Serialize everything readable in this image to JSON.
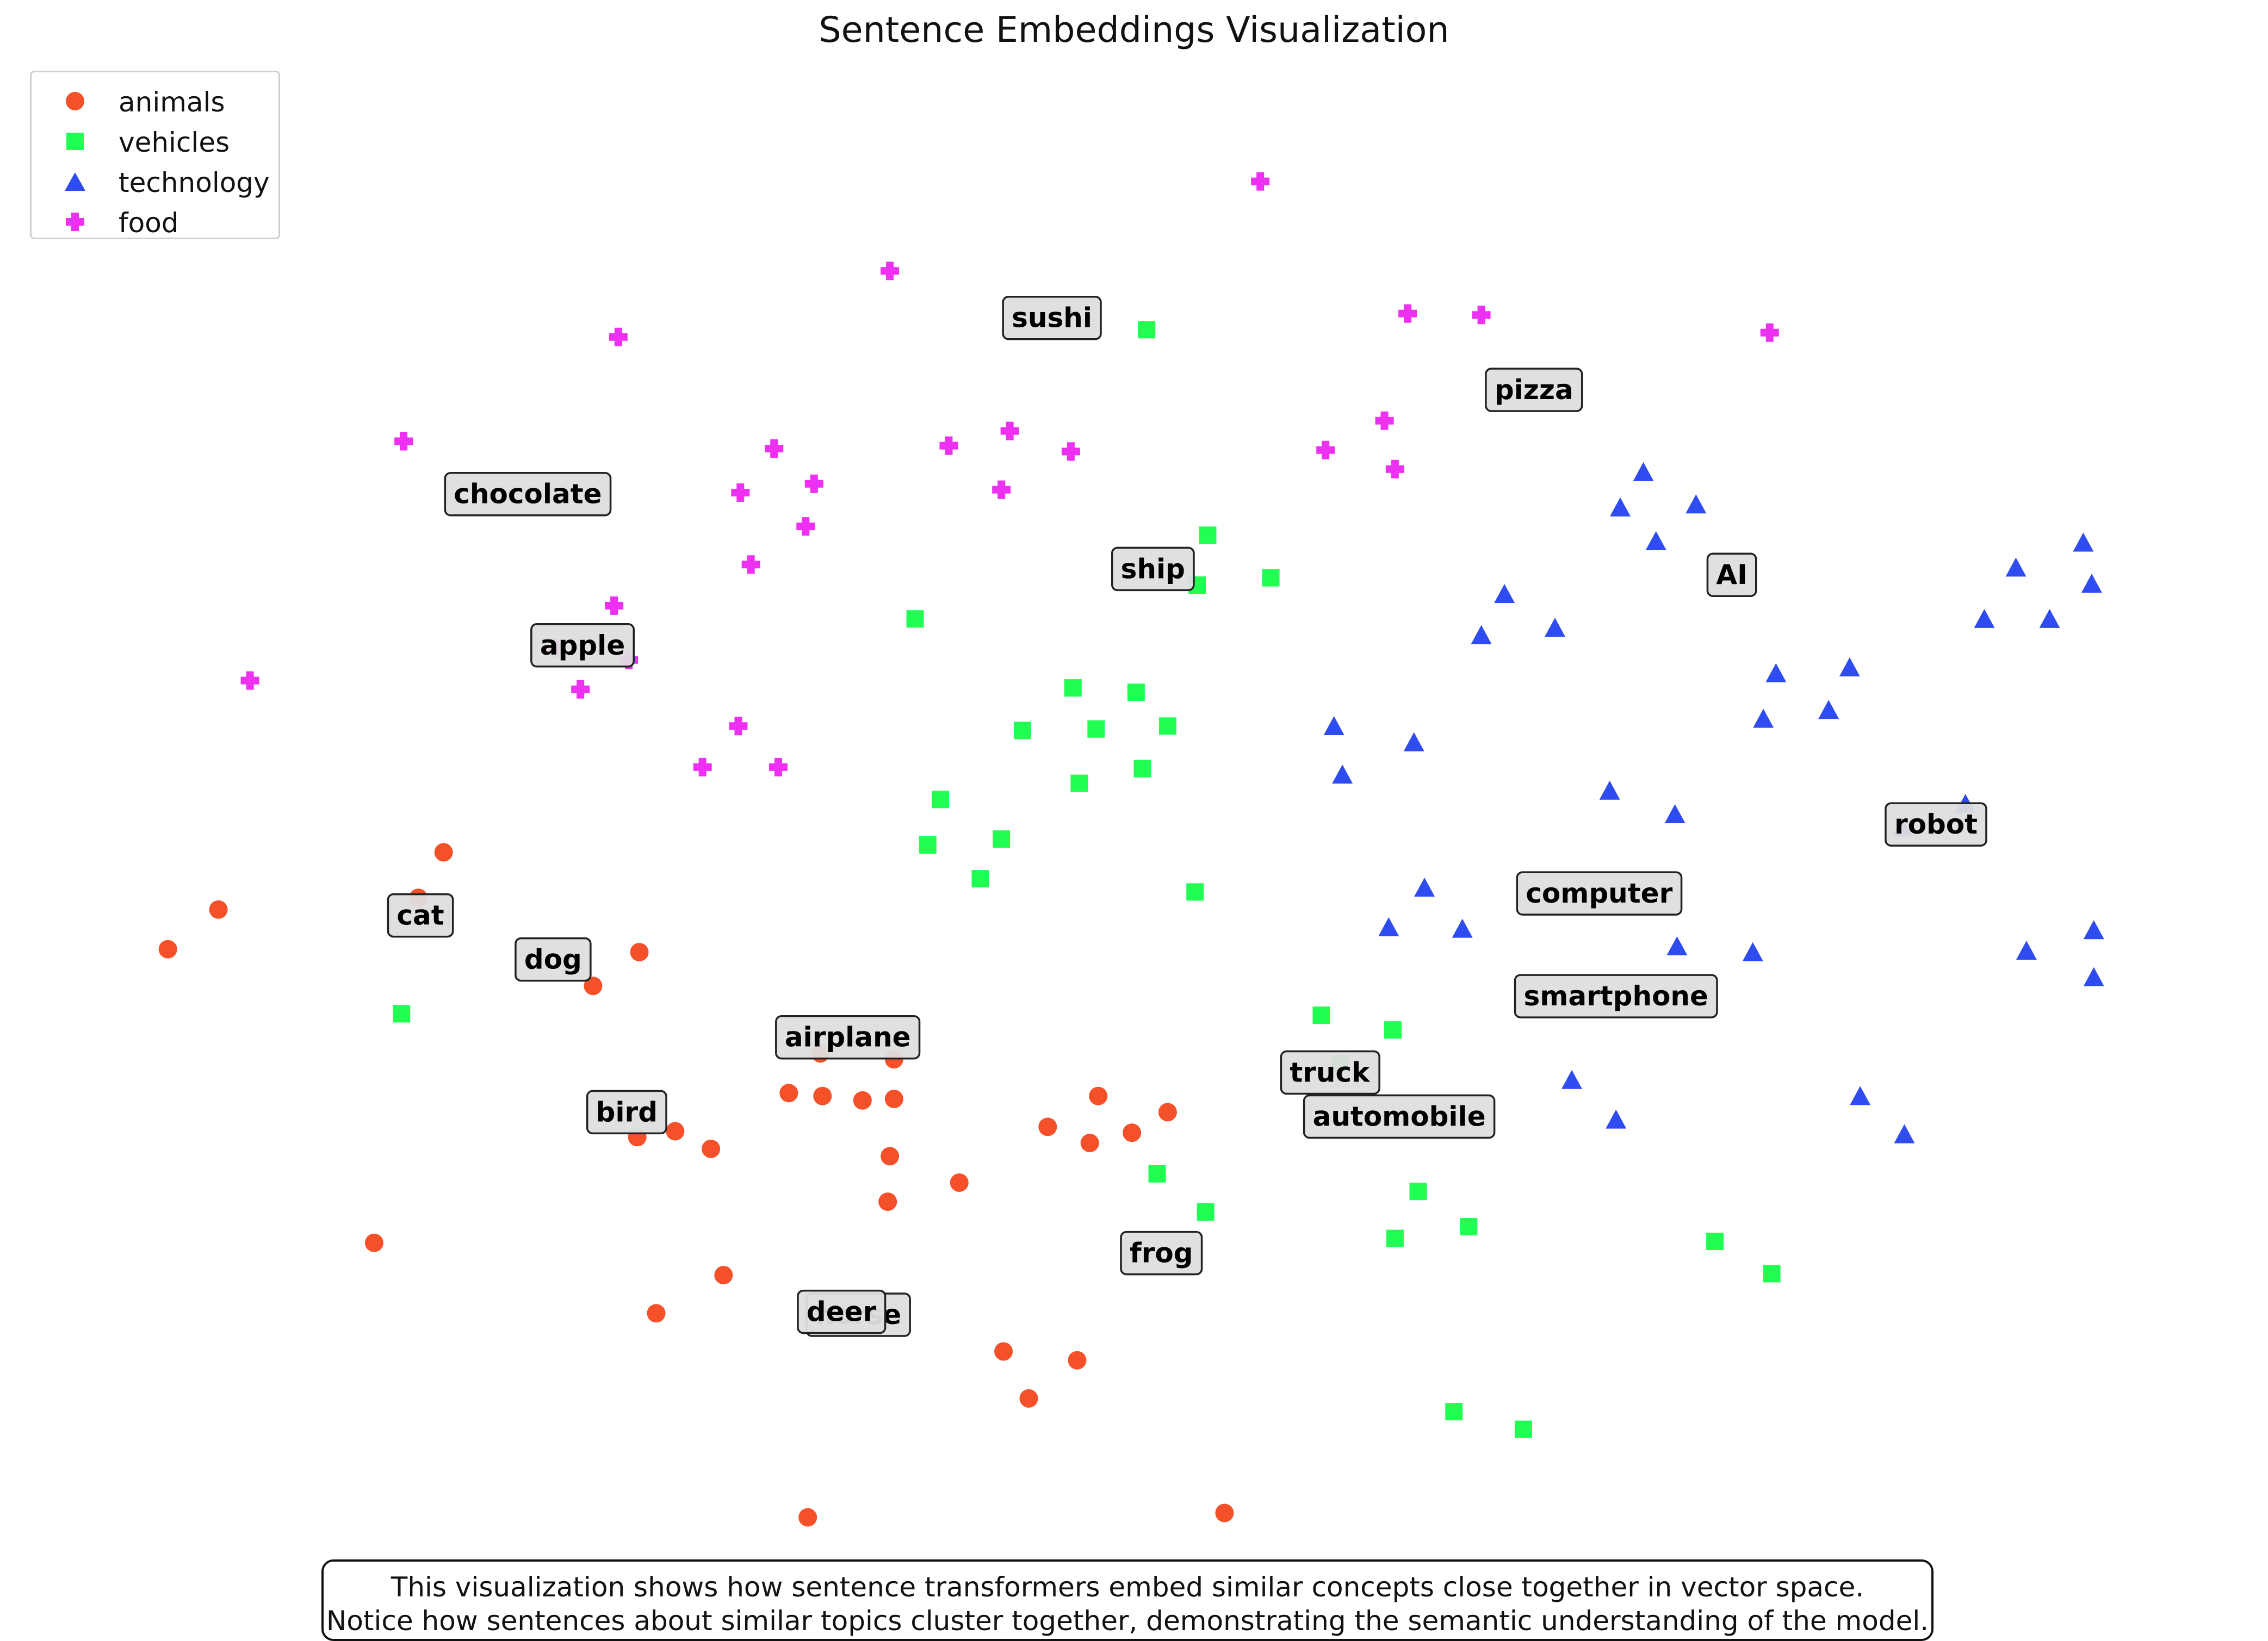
{
  "chart_data": {
    "type": "scatter",
    "title": "Sentence Embeddings Visualization",
    "xlabel": "",
    "ylabel": "",
    "grid": false,
    "axes_visible": false,
    "xlim": [
      0,
      100
    ],
    "ylim": [
      0,
      100
    ],
    "legend_placement": "top-left",
    "series": [
      {
        "name": "animals",
        "marker": "circle",
        "color": "#f4512b",
        "points": [
          [
            17.2,
            47.5
          ],
          [
            16.0,
            44.4
          ],
          [
            6.5,
            43.6
          ],
          [
            4.1,
            40.9
          ],
          [
            26.5,
            40.7
          ],
          [
            24.3,
            38.4
          ],
          [
            35.1,
            33.8
          ],
          [
            38.6,
            33.4
          ],
          [
            33.6,
            31.1
          ],
          [
            35.2,
            30.9
          ],
          [
            37.1,
            30.6
          ],
          [
            38.6,
            30.7
          ],
          [
            48.3,
            30.9
          ],
          [
            45.9,
            28.8
          ],
          [
            51.6,
            29.8
          ],
          [
            49.9,
            28.4
          ],
          [
            47.9,
            27.7
          ],
          [
            28.2,
            28.5
          ],
          [
            26.4,
            28.1
          ],
          [
            29.9,
            27.3
          ],
          [
            38.4,
            26.8
          ],
          [
            41.7,
            25.0
          ],
          [
            38.3,
            23.7
          ],
          [
            13.9,
            20.9
          ],
          [
            30.5,
            18.7
          ],
          [
            27.3,
            16.1
          ],
          [
            43.8,
            13.5
          ],
          [
            47.3,
            12.9
          ],
          [
            45.0,
            10.3
          ],
          [
            34.5,
            2.2
          ],
          [
            54.3,
            2.5
          ]
        ]
      },
      {
        "name": "vehicles",
        "marker": "square",
        "color": "#21ff52",
        "points": [
          [
            50.6,
            83.1
          ],
          [
            53.5,
            69.1
          ],
          [
            56.5,
            66.2
          ],
          [
            53.0,
            65.7
          ],
          [
            39.6,
            63.4
          ],
          [
            47.1,
            58.7
          ],
          [
            50.1,
            58.4
          ],
          [
            44.7,
            55.8
          ],
          [
            48.2,
            55.9
          ],
          [
            51.6,
            56.1
          ],
          [
            50.4,
            53.2
          ],
          [
            47.4,
            52.2
          ],
          [
            40.8,
            51.1
          ],
          [
            43.7,
            48.4
          ],
          [
            40.2,
            48.0
          ],
          [
            42.7,
            45.7
          ],
          [
            52.9,
            44.8
          ],
          [
            15.2,
            36.5
          ],
          [
            58.9,
            36.4
          ],
          [
            62.3,
            35.4
          ],
          [
            59.8,
            33.1
          ],
          [
            51.1,
            25.6
          ],
          [
            53.4,
            23.0
          ],
          [
            63.5,
            24.4
          ],
          [
            65.9,
            22.0
          ],
          [
            62.4,
            21.2
          ],
          [
            77.6,
            21.0
          ],
          [
            80.3,
            18.8
          ],
          [
            65.2,
            9.4
          ],
          [
            68.5,
            8.2
          ]
        ]
      },
      {
        "name": "technology",
        "marker": "triangle",
        "color": "#2e4cf0",
        "points": [
          [
            74.2,
            73.3
          ],
          [
            73.1,
            70.9
          ],
          [
            76.7,
            71.1
          ],
          [
            74.8,
            68.6
          ],
          [
            67.6,
            65.0
          ],
          [
            66.5,
            62.2
          ],
          [
            70.0,
            62.7
          ],
          [
            95.1,
            68.5
          ],
          [
            91.9,
            66.8
          ],
          [
            95.5,
            65.7
          ],
          [
            90.4,
            63.3
          ],
          [
            93.5,
            63.3
          ],
          [
            80.5,
            59.6
          ],
          [
            84.0,
            60.0
          ],
          [
            79.9,
            56.5
          ],
          [
            83.0,
            57.1
          ],
          [
            59.5,
            56.0
          ],
          [
            63.3,
            54.9
          ],
          [
            59.9,
            52.7
          ],
          [
            72.6,
            51.6
          ],
          [
            75.7,
            50.0
          ],
          [
            89.5,
            50.7
          ],
          [
            86.5,
            49.1
          ],
          [
            63.8,
            45.0
          ],
          [
            62.1,
            42.3
          ],
          [
            65.6,
            42.2
          ],
          [
            75.8,
            41.0
          ],
          [
            79.4,
            40.6
          ],
          [
            92.4,
            40.7
          ],
          [
            95.6,
            42.1
          ],
          [
            95.6,
            38.9
          ],
          [
            70.8,
            31.9
          ],
          [
            72.9,
            29.2
          ],
          [
            84.5,
            30.8
          ],
          [
            86.6,
            28.2
          ]
        ]
      },
      {
        "name": "food",
        "marker": "plus",
        "color": "#ee30f2",
        "points": [
          [
            56.0,
            93.2
          ],
          [
            38.4,
            87.1
          ],
          [
            25.5,
            82.6
          ],
          [
            63.0,
            84.2
          ],
          [
            66.5,
            84.1
          ],
          [
            80.2,
            82.9
          ],
          [
            32.9,
            75.0
          ],
          [
            15.3,
            75.5
          ],
          [
            41.2,
            75.2
          ],
          [
            44.1,
            76.2
          ],
          [
            47.0,
            74.8
          ],
          [
            34.8,
            72.6
          ],
          [
            31.3,
            72.0
          ],
          [
            43.7,
            72.2
          ],
          [
            59.1,
            74.9
          ],
          [
            61.9,
            76.9
          ],
          [
            62.4,
            73.6
          ],
          [
            34.4,
            69.7
          ],
          [
            31.8,
            67.1
          ],
          [
            25.3,
            64.3
          ],
          [
            22.5,
            61.4
          ],
          [
            26.0,
            60.6
          ],
          [
            23.7,
            58.6
          ],
          [
            8.0,
            59.2
          ],
          [
            31.2,
            56.1
          ],
          [
            29.5,
            53.3
          ],
          [
            33.1,
            53.3
          ]
        ]
      }
    ],
    "annotations": [
      {
        "text": "sushi",
        "x": 46.1,
        "y": 83.9
      },
      {
        "text": "pizza",
        "x": 69.0,
        "y": 79.0
      },
      {
        "text": "chocolate",
        "x": 21.2,
        "y": 71.9
      },
      {
        "text": "ship",
        "x": 50.9,
        "y": 66.8
      },
      {
        "text": "AI",
        "x": 78.4,
        "y": 66.4
      },
      {
        "text": "apple",
        "x": 23.8,
        "y": 61.6
      },
      {
        "text": "robot",
        "x": 88.1,
        "y": 49.4
      },
      {
        "text": "computer",
        "x": 72.1,
        "y": 44.7
      },
      {
        "text": "cat",
        "x": 16.1,
        "y": 43.2
      },
      {
        "text": "dog",
        "x": 22.4,
        "y": 40.2
      },
      {
        "text": "smartphone",
        "x": 72.9,
        "y": 37.7
      },
      {
        "text": "airplane",
        "x": 36.4,
        "y": 34.9
      },
      {
        "text": "truck",
        "x": 59.3,
        "y": 32.5
      },
      {
        "text": "automobile",
        "x": 62.6,
        "y": 29.5
      },
      {
        "text": "bird",
        "x": 25.9,
        "y": 29.8
      },
      {
        "text": "frog",
        "x": 51.3,
        "y": 20.2
      },
      {
        "text": "horse",
        "x": 36.9,
        "y": 16.0
      },
      {
        "text": "deer",
        "x": 36.1,
        "y": 16.2
      }
    ],
    "caption": [
      "This visualization shows how sentence transformers embed similar concepts close together in vector space.",
      "Notice how sentences about similar topics cluster together, demonstrating the semantic understanding of the model."
    ]
  }
}
